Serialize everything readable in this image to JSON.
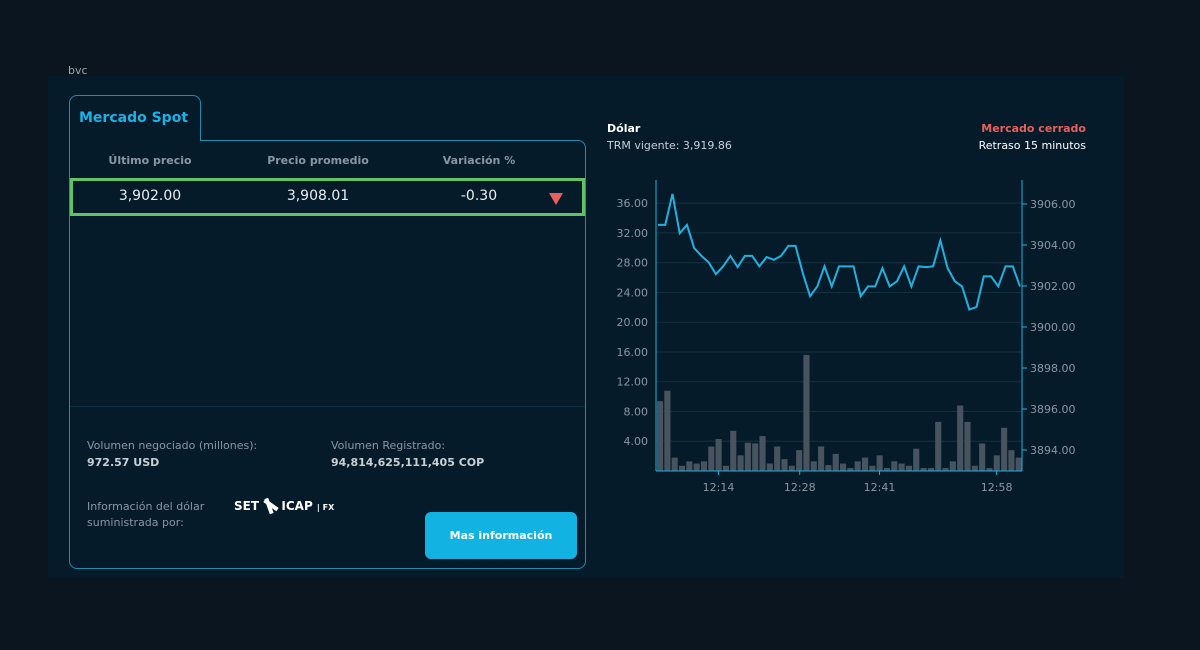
{
  "header": {
    "brand": "bvc"
  },
  "spot": {
    "tab_label": "Mercado Spot",
    "columns": [
      "Último precio",
      "Precio promedio",
      "Variación %"
    ],
    "row": {
      "last": "3,902.00",
      "avg": "3,908.01",
      "variation": "-0.30",
      "trend_icon": "triangle-down",
      "trend_color": "#e8605c"
    },
    "volume_label": "Volumen negociado (millones):",
    "volume_value": "972.57 USD",
    "registered_label": "Volumen Registrado:",
    "registered_value": "94,814,625,111,405 COP",
    "provider_label_1": "Información del dólar",
    "provider_label_2": "suministrada por:",
    "provider_logo": "SET ICAP | FX",
    "more_button": "Mas información"
  },
  "chart_header": {
    "title": "Dólar",
    "trm": "TRM vigente: 3,919.86",
    "status": "Mercado cerrado",
    "status_color": "#e8605c",
    "delay": "Retraso 15 minutos"
  },
  "chart_data": {
    "type": "line+bar",
    "left_axis": {
      "ticks": [
        "4.00",
        "8.00",
        "12.00",
        "16.00",
        "20.00",
        "24.00",
        "28.00",
        "32.00",
        "36.00"
      ],
      "range": [
        0,
        39
      ]
    },
    "right_axis": {
      "ticks": [
        "3894.00",
        "3896.00",
        "3898.00",
        "3900.00",
        "3902.00",
        "3904.00",
        "3906.00"
      ],
      "range": [
        3892.7,
        3907.2
      ]
    },
    "x_ticks": [
      {
        "label": "12:14",
        "index": 8.4
      },
      {
        "label": "12:28",
        "index": 19.5
      },
      {
        "label": "12:41",
        "index": 30.4
      },
      {
        "label": "12:58",
        "index": 46.4
      }
    ],
    "price": [
      3904.98,
      3904.98,
      3906.49,
      3904.57,
      3904.98,
      3903.85,
      3903.47,
      3903.15,
      3902.58,
      3902.96,
      3903.47,
      3902.92,
      3903.47,
      3903.47,
      3902.96,
      3903.41,
      3903.28,
      3903.47,
      3903.96,
      3903.96,
      3902.63,
      3901.5,
      3901.98,
      3902.96,
      3901.98,
      3902.96,
      3902.96,
      3902.96,
      3901.5,
      3901.98,
      3901.98,
      3902.87,
      3901.98,
      3902.23,
      3902.96,
      3901.98,
      3902.96,
      3902.92,
      3902.96,
      3904.22,
      3902.87,
      3902.23,
      3901.98,
      3900.85,
      3900.98,
      3902.47,
      3902.47,
      3901.98,
      3902.96,
      3902.96,
      3901.98
    ],
    "volume": [
      9.4,
      10.8,
      1.8,
      0.7,
      1.3,
      1.0,
      1.3,
      3.3,
      4.3,
      0.7,
      5.4,
      2.1,
      3.8,
      3.7,
      4.7,
      1.0,
      3.3,
      1.6,
      0.7,
      2.8,
      15.6,
      1.3,
      3.3,
      0.8,
      2.3,
      1.0,
      0.4,
      1.3,
      1.8,
      0.7,
      2.1,
      0.4,
      1.3,
      1.0,
      0.7,
      3.0,
      0.4,
      0.4,
      6.6,
      0.4,
      1.3,
      8.8,
      6.6,
      0.7,
      3.7,
      0.4,
      2.1,
      5.8,
      2.8,
      1.8
    ],
    "line_color": "#1fb2e0",
    "bar_color": "#47535e",
    "grid": true
  }
}
